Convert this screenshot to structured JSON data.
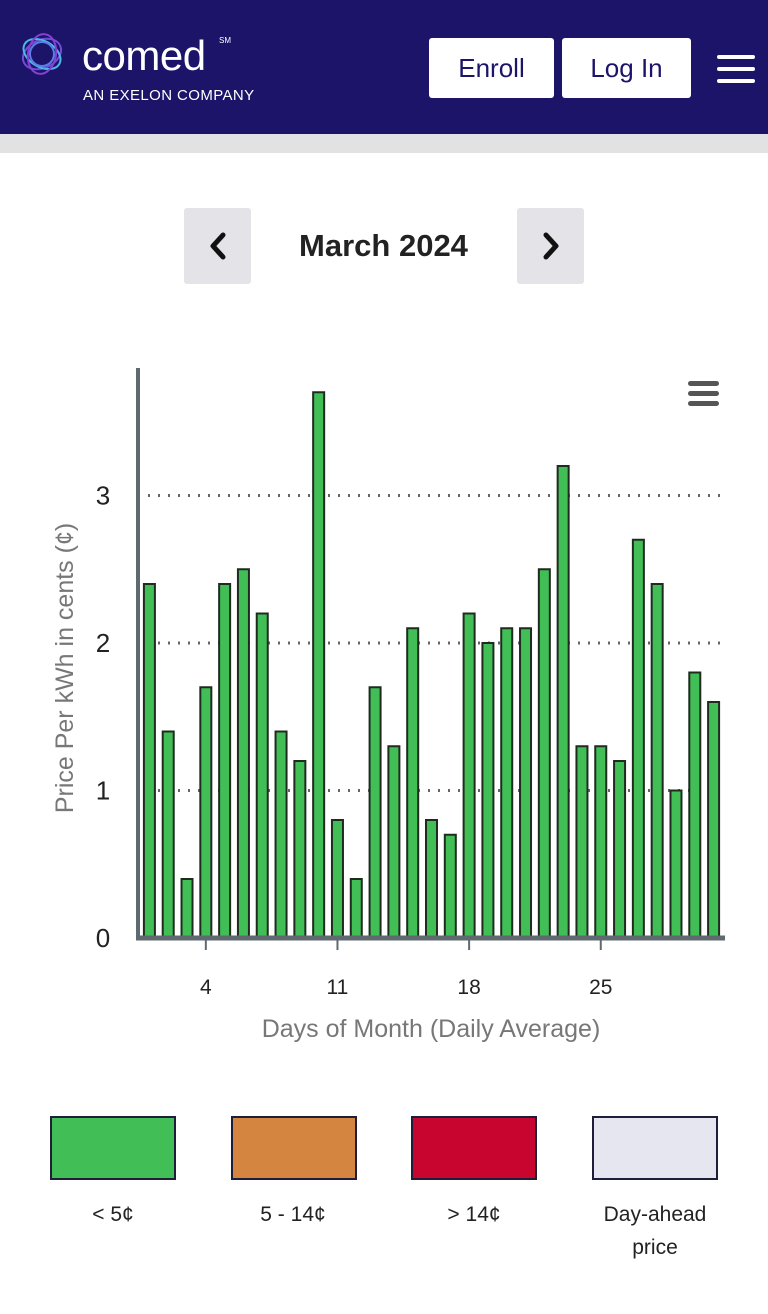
{
  "header": {
    "brand_name": "comed",
    "brand_mark": "SM",
    "tagline": "AN EXELON COMPANY",
    "enroll_label": "Enroll",
    "login_label": "Log In",
    "menu_icon": "hamburger-menu-icon",
    "background_color": "#1c1469"
  },
  "navigation": {
    "month_label": "March 2024",
    "prev_icon": "chevron-left-icon",
    "next_icon": "chevron-right-icon"
  },
  "chart_menu_icon": "hamburger-menu-icon",
  "chart_data": {
    "type": "bar",
    "title": "",
    "xlabel": "Days of Month (Daily Average)",
    "ylabel": "Price Per kWh in cents (¢)",
    "ylim": [
      0,
      3.8
    ],
    "yticks": [
      0,
      1,
      2,
      3
    ],
    "xtick_labels": [
      "4",
      "11",
      "18",
      "25"
    ],
    "xticks": [
      4,
      11,
      18,
      25
    ],
    "grid": "dotted horizontal",
    "bar_color": "#41bf56",
    "categories": [
      1,
      2,
      3,
      4,
      5,
      6,
      7,
      8,
      9,
      10,
      11,
      12,
      13,
      14,
      15,
      16,
      17,
      18,
      19,
      20,
      21,
      22,
      23,
      24,
      25,
      26,
      27,
      28,
      29,
      30,
      31
    ],
    "values": [
      2.4,
      1.4,
      0.4,
      1.7,
      2.4,
      2.5,
      2.2,
      1.4,
      1.2,
      3.7,
      0.8,
      0.4,
      1.7,
      1.3,
      2.1,
      0.8,
      0.7,
      2.2,
      2.0,
      2.1,
      2.1,
      2.5,
      3.2,
      1.3,
      1.3,
      1.2,
      2.7,
      2.4,
      1.0,
      1.8,
      1.6
    ]
  },
  "legend": [
    {
      "label": "< 5¢",
      "color": "#41bf56"
    },
    {
      "label": "5 - 14¢",
      "color": "#d48540"
    },
    {
      "label": "> 14¢",
      "color": "#c8052e"
    },
    {
      "label": "Day-ahead price",
      "color": "#e6e6f0"
    }
  ]
}
